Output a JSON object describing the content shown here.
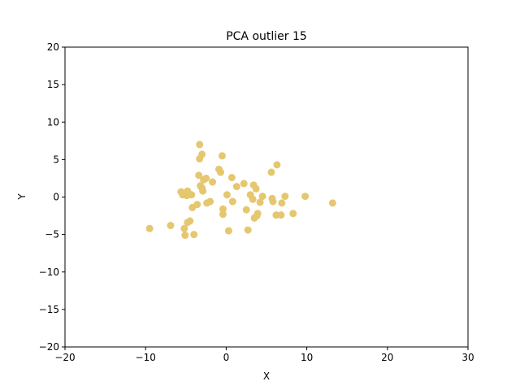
{
  "chart_data": {
    "type": "scatter",
    "title": "PCA outlier 15",
    "xlabel": "X",
    "ylabel": "Y",
    "xlim": [
      -20,
      30
    ],
    "ylim": [
      -20,
      20
    ],
    "xticks": [
      -20,
      -10,
      0,
      10,
      20,
      30
    ],
    "yticks": [
      -20,
      -15,
      -10,
      -5,
      0,
      5,
      10,
      15,
      20
    ],
    "grid": false,
    "marker_color": "#E5C76F",
    "series": [
      {
        "points": [
          [
            -9.5,
            -4.2
          ],
          [
            -6.9,
            -3.8
          ],
          [
            -5.6,
            0.7
          ],
          [
            -5.4,
            0.3
          ],
          [
            -5.2,
            -4.2
          ],
          [
            -5.1,
            -5.1
          ],
          [
            -5.0,
            0.5
          ],
          [
            -4.9,
            0.2
          ],
          [
            -4.8,
            0.8
          ],
          [
            -4.8,
            -3.4
          ],
          [
            -4.5,
            -3.2
          ],
          [
            -4.3,
            0.3
          ],
          [
            -4.2,
            -1.4
          ],
          [
            -4.0,
            -5.0
          ],
          [
            -3.6,
            -1.0
          ],
          [
            -3.4,
            2.9
          ],
          [
            -3.3,
            7.0
          ],
          [
            -3.3,
            5.1
          ],
          [
            -3.2,
            1.5
          ],
          [
            -3.0,
            5.7
          ],
          [
            -3.0,
            1.2
          ],
          [
            -2.9,
            0.8
          ],
          [
            -2.8,
            2.3
          ],
          [
            -2.5,
            2.5
          ],
          [
            -2.4,
            -0.8
          ],
          [
            -2.0,
            -0.6
          ],
          [
            -1.7,
            2.0
          ],
          [
            -0.9,
            3.7
          ],
          [
            -0.7,
            3.3
          ],
          [
            -0.5,
            5.5
          ],
          [
            -0.4,
            -2.3
          ],
          [
            -0.4,
            -1.6
          ],
          [
            0.1,
            0.3
          ],
          [
            0.3,
            -4.5
          ],
          [
            0.7,
            2.6
          ],
          [
            0.8,
            -0.6
          ],
          [
            1.3,
            1.4
          ],
          [
            2.2,
            1.8
          ],
          [
            2.5,
            -1.7
          ],
          [
            2.7,
            -4.4
          ],
          [
            3.0,
            0.3
          ],
          [
            3.3,
            -0.3
          ],
          [
            3.4,
            1.6
          ],
          [
            3.5,
            -2.8
          ],
          [
            3.7,
            1.1
          ],
          [
            3.8,
            -2.5
          ],
          [
            3.9,
            -2.2
          ],
          [
            4.2,
            -0.7
          ],
          [
            4.5,
            0.1
          ],
          [
            5.6,
            3.3
          ],
          [
            5.7,
            -0.2
          ],
          [
            5.8,
            -0.6
          ],
          [
            6.2,
            -2.4
          ],
          [
            6.3,
            4.3
          ],
          [
            6.8,
            -2.4
          ],
          [
            6.9,
            -0.8
          ],
          [
            7.3,
            0.1
          ],
          [
            8.3,
            -2.2
          ],
          [
            9.8,
            0.1
          ],
          [
            13.2,
            -0.8
          ]
        ]
      }
    ]
  }
}
